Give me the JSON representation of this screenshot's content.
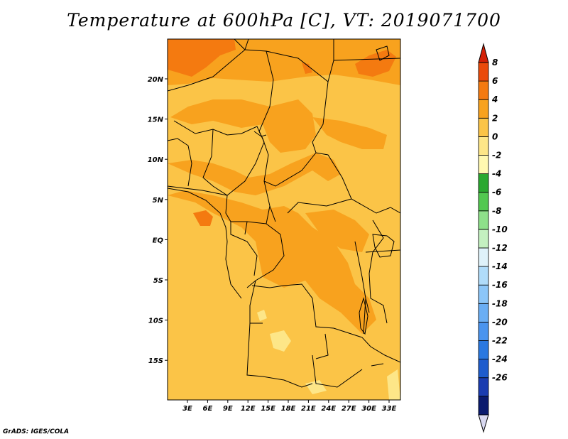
{
  "title": "Temperature at 600hPa [C], VT: 2019071700",
  "credit": "GrADS: IGES/COLA",
  "map": {
    "lat_labels": [
      "20N",
      "15N",
      "10N",
      "5N",
      "EQ",
      "5S",
      "10S",
      "15S"
    ],
    "lon_labels": [
      "3E",
      "6E",
      "9E",
      "12E",
      "15E",
      "18E",
      "21E",
      "24E",
      "27E",
      "30E",
      "33E"
    ]
  },
  "colorbar": {
    "labels": [
      "8",
      "6",
      "4",
      "2",
      "0",
      "-2",
      "-4",
      "-6",
      "-8",
      "-10",
      "-12",
      "-14",
      "-16",
      "-18",
      "-20",
      "-22",
      "-24",
      "-26"
    ],
    "colors": [
      "#d8d8f0",
      "#0a1a6e",
      "#1a3cb0",
      "#1e5ccd",
      "#2a78e0",
      "#4a94ee",
      "#6aaef4",
      "#8cc6f8",
      "#b0dcfa",
      "#dff2fa",
      "#c4f0c0",
      "#8ee08a",
      "#52c850",
      "#2aa830",
      "#fff8b0",
      "#fde688",
      "#fbc447",
      "#f8a21e",
      "#f47a10",
      "#ea4a0a",
      "#d42006"
    ]
  }
}
